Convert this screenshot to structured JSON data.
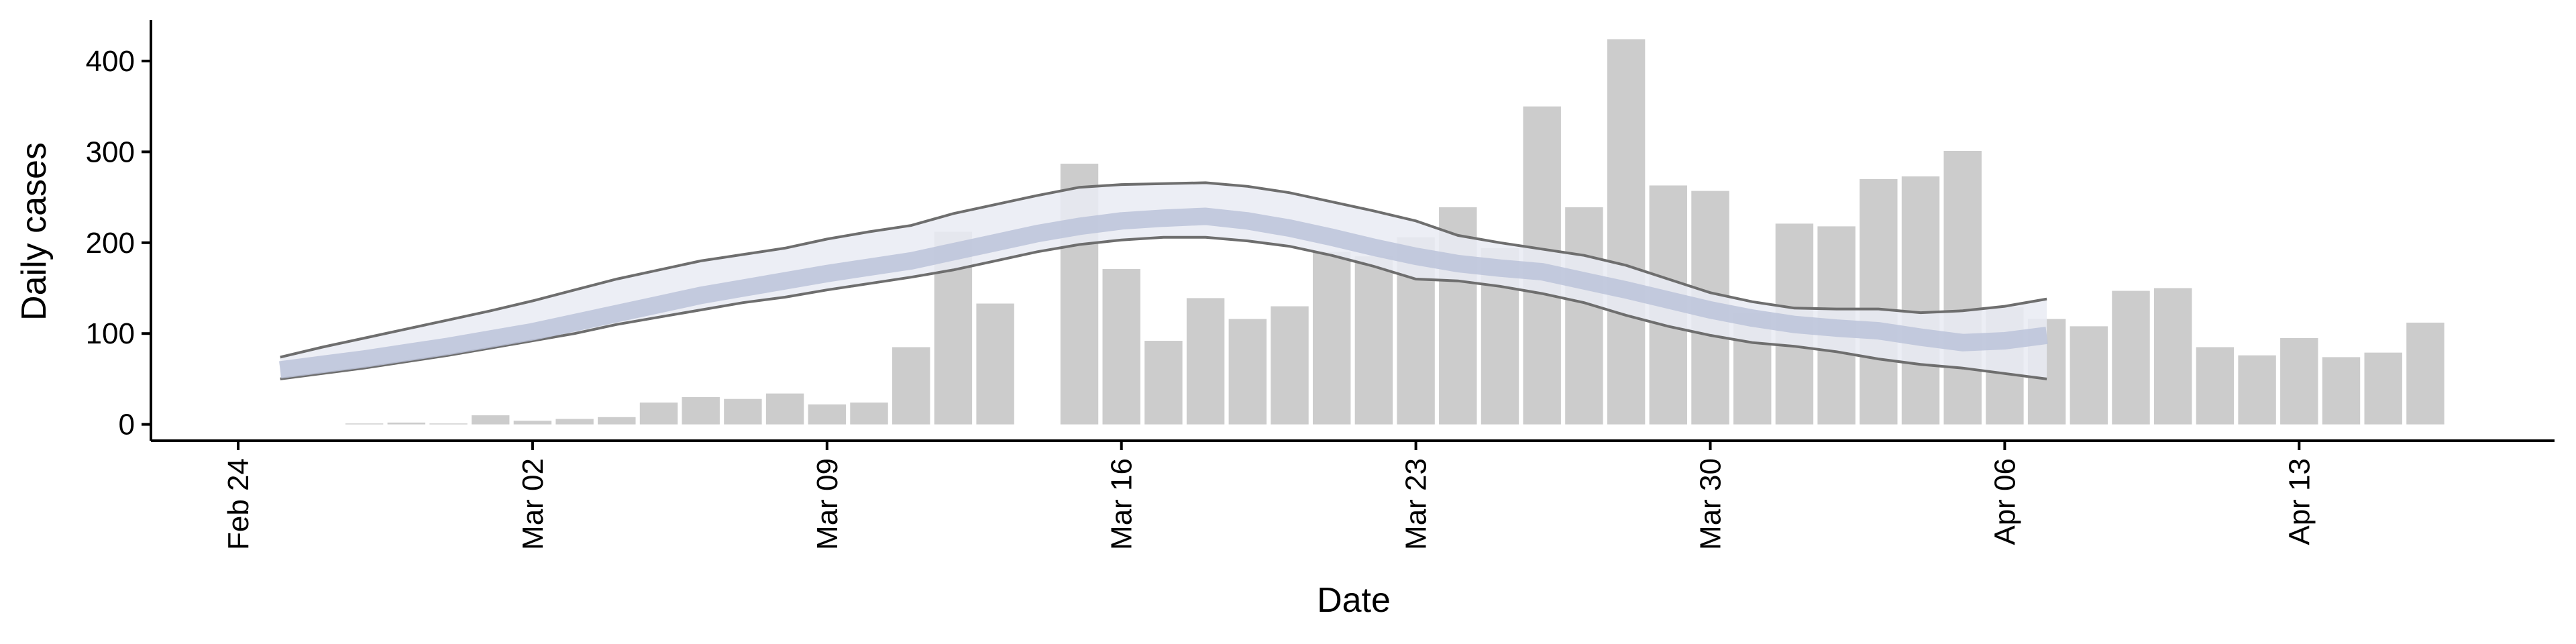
{
  "chart_data": {
    "type": "bar",
    "x_label": "Date",
    "y_label": "Daily cases",
    "categories": [
      "Feb 24",
      null,
      null,
      null,
      null,
      null,
      null,
      "Mar 02",
      null,
      null,
      null,
      null,
      null,
      null,
      "Mar 09",
      null,
      null,
      null,
      null,
      null,
      null,
      "Mar 16",
      null,
      null,
      null,
      null,
      null,
      null,
      "Mar 23",
      null,
      null,
      null,
      null,
      null,
      null,
      "Mar 30",
      null,
      null,
      null,
      null,
      null,
      null,
      "Apr 06",
      null,
      null,
      null,
      null,
      null,
      null,
      "Apr 13",
      null,
      null,
      null
    ],
    "ylim": [
      -18,
      445
    ],
    "yticks": [
      0,
      100,
      200,
      300,
      400
    ],
    "series": [
      {
        "mark": "bar",
        "color": "#cccccc",
        "values": [
          null,
          null,
          null,
          1,
          2,
          1,
          10,
          4,
          6,
          8,
          24,
          30,
          28,
          34,
          22,
          24,
          85,
          212,
          133,
          null,
          287,
          171,
          92,
          139,
          116,
          130,
          190,
          185,
          206,
          239,
          194,
          350,
          239,
          424,
          263,
          257,
          123,
          221,
          218,
          270,
          273,
          301,
          129,
          116,
          108,
          147,
          150,
          85,
          76,
          95,
          74,
          79,
          112
        ]
      },
      {
        "mark": "band",
        "color": "#e9ebf3",
        "line_color": "#6e6e6e",
        "upper": [
          null,
          74,
          85,
          95,
          105,
          115,
          125,
          136,
          148,
          160,
          170,
          180,
          187,
          194,
          204,
          212,
          219,
          232,
          242,
          252,
          261,
          264,
          265,
          266,
          262,
          255,
          245,
          235,
          224,
          208,
          200,
          193,
          186,
          175,
          160,
          145,
          135,
          128,
          127,
          127,
          123,
          125,
          130,
          138,
          null,
          null,
          null,
          null,
          null,
          null,
          null,
          null,
          null
        ],
        "lower": [
          null,
          50,
          56,
          62,
          69,
          76,
          84,
          92,
          100,
          110,
          118,
          126,
          134,
          140,
          148,
          155,
          162,
          170,
          180,
          190,
          198,
          203,
          206,
          206,
          202,
          196,
          186,
          174,
          160,
          158,
          152,
          144,
          134,
          120,
          108,
          98,
          90,
          86,
          80,
          72,
          66,
          62,
          56,
          50,
          null,
          null,
          null,
          null,
          null,
          null,
          null,
          null,
          null
        ]
      },
      {
        "mark": "line",
        "color": "#bcc3d9",
        "values": [
          null,
          60,
          66,
          72,
          79,
          86,
          94,
          102,
          112,
          122,
          132,
          142,
          150,
          158,
          166,
          173,
          180,
          190,
          200,
          210,
          218,
          224,
          227,
          229,
          224,
          216,
          206,
          195,
          185,
          177,
          172,
          168,
          158,
          148,
          137,
          126,
          117,
          110,
          106,
          103,
          96,
          90,
          92,
          98,
          null,
          null,
          null,
          null,
          null,
          null,
          null,
          null,
          null
        ]
      }
    ]
  }
}
